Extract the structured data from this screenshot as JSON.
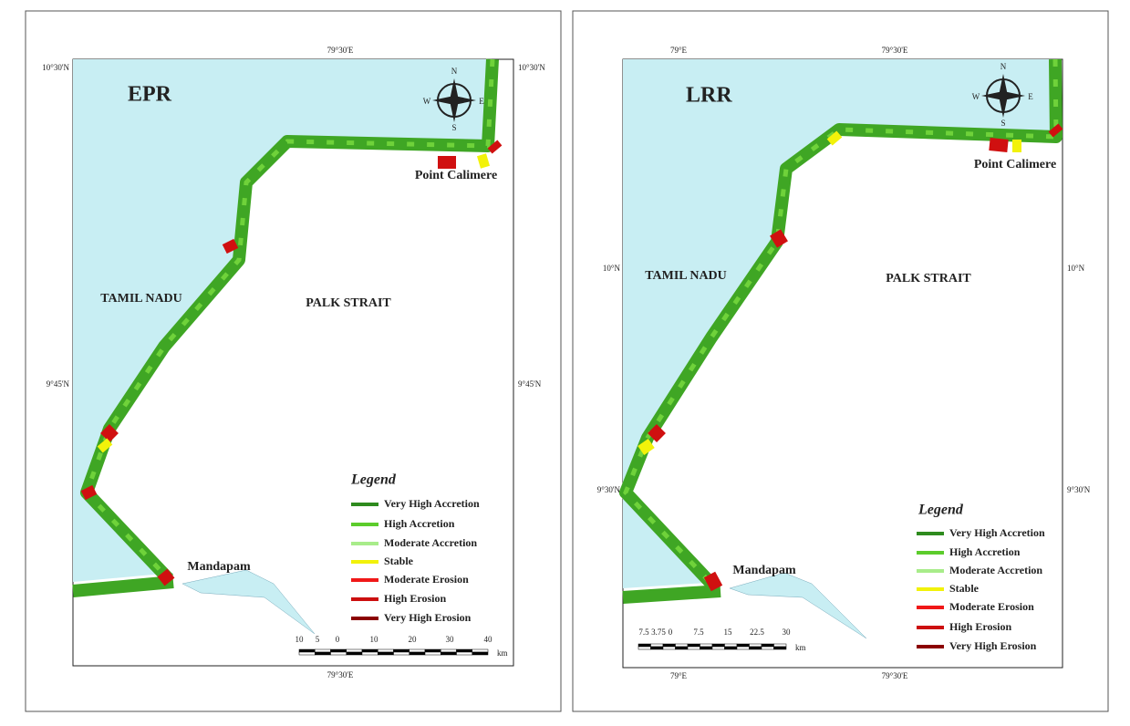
{
  "panels": [
    {
      "title": "EPR",
      "lat_labels_left": [
        "10°30'N",
        "9°45'N"
      ],
      "lat_labels_right": [
        "10°30'N",
        "9°45'N"
      ],
      "lon_labels_top": [
        "79°30'E"
      ],
      "lon_labels_bottom": [
        "79°30'E"
      ],
      "places": [
        "TAMIL NADU",
        "PALK STRAIT",
        "Point Calimere",
        "Mandapam"
      ],
      "compass": [
        "N",
        "S",
        "W",
        "E"
      ],
      "legend": {
        "title": "Legend",
        "items": [
          {
            "label": "Very High Accretion",
            "color": "#2e8b1e"
          },
          {
            "label": "High Accretion",
            "color": "#5ccc2c"
          },
          {
            "label": "Moderate Accretion",
            "color": "#a8ec8a"
          },
          {
            "label": "Stable",
            "color": "#f2f20a"
          },
          {
            "label": "Moderate Erosion",
            "color": "#f01818"
          },
          {
            "label": "High Erosion",
            "color": "#cc0f0f"
          },
          {
            "label": "Very High Erosion",
            "color": "#8b0000"
          }
        ]
      },
      "scale": {
        "labels": [
          "10",
          "5",
          "0",
          "10",
          "20",
          "30",
          "40"
        ],
        "unit": "km"
      }
    },
    {
      "title": "LRR",
      "lat_labels_left": [
        "10°N",
        "9°30'N"
      ],
      "lat_labels_right": [
        "10°N",
        "9°30'N"
      ],
      "lon_labels_top": [
        "79°E",
        "79°30'E"
      ],
      "lon_labels_bottom": [
        "79°E",
        "79°30'E"
      ],
      "places": [
        "TAMIL NADU",
        "PALK STRAIT",
        "Point Calimere",
        "Mandapam"
      ],
      "compass": [
        "N",
        "S",
        "W",
        "E"
      ],
      "legend": {
        "title": "Legend",
        "items": [
          {
            "label": "Very High Accretion",
            "color": "#2e8b1e"
          },
          {
            "label": "High Accretion",
            "color": "#5ccc2c"
          },
          {
            "label": "Moderate Accretion",
            "color": "#a8ec8a"
          },
          {
            "label": "Stable",
            "color": "#f2f20a"
          },
          {
            "label": "Moderate Erosion",
            "color": "#f01818"
          },
          {
            "label": "High Erosion",
            "color": "#cc0f0f"
          },
          {
            "label": "Very High Erosion",
            "color": "#8b0000"
          }
        ]
      },
      "scale": {
        "labels": [
          "7.5",
          "3.75",
          "0",
          "7.5",
          "15",
          "22.5",
          "30"
        ],
        "unit": "km"
      }
    }
  ]
}
